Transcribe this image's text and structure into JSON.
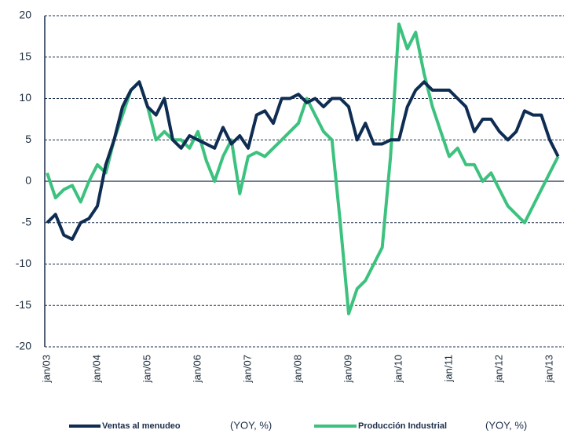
{
  "chart_data": {
    "type": "line",
    "categories": [
      "jan/03",
      null,
      null,
      null,
      null,
      null,
      "jan/04",
      null,
      null,
      null,
      null,
      null,
      "jan/05",
      null,
      null,
      null,
      null,
      null,
      "jan/06",
      null,
      null,
      null,
      null,
      null,
      "jan/07",
      null,
      null,
      null,
      null,
      null,
      "jan/08",
      null,
      null,
      null,
      null,
      null,
      "jan/09",
      null,
      null,
      null,
      null,
      null,
      "jan/10",
      null,
      null,
      null,
      null,
      null,
      "jan/11",
      null,
      null,
      null,
      null,
      null,
      "jan/12",
      null,
      null,
      null,
      null,
      null,
      "jan/13",
      null
    ],
    "series": [
      {
        "name": "Ventas al menudeo",
        "color": "#0f2c52",
        "values": [
          -5,
          -4,
          -6.5,
          -7,
          -5,
          -4.5,
          -3,
          2,
          5,
          9,
          11,
          12,
          9,
          8,
          10,
          5,
          4,
          5.5,
          5,
          4.5,
          4,
          6.5,
          4.5,
          5.5,
          4,
          8,
          8.5,
          7,
          10,
          10,
          10.5,
          9.5,
          10,
          9,
          10,
          10,
          9,
          5,
          7,
          4.5,
          4.5,
          5,
          5,
          9,
          11,
          12,
          11,
          11,
          11,
          10,
          9,
          6,
          7.5,
          7.5,
          6,
          5,
          6,
          8.5,
          8,
          8,
          5,
          3
        ]
      },
      {
        "name": "Producción Industrial",
        "color": "#3cc27e",
        "values": [
          1,
          -2,
          -1,
          -0.5,
          -2.5,
          0,
          2,
          1,
          5,
          8,
          11,
          12,
          9,
          5,
          6,
          5,
          5,
          4,
          6,
          2.5,
          0,
          3,
          5,
          -1.5,
          3,
          3.5,
          3,
          4,
          5,
          6,
          7,
          10,
          8,
          6,
          5,
          -5,
          -16,
          -13,
          -12,
          -10,
          -8,
          3,
          19,
          16,
          18,
          13,
          9,
          6,
          3,
          4,
          2,
          2,
          0,
          1,
          -1,
          -3,
          -4,
          -5,
          -3,
          -1,
          1,
          3
        ]
      }
    ],
    "legend_units": [
      "(YOY,  %)",
      "(YOY,  %)"
    ],
    "ylim": [
      -20,
      20
    ],
    "yticks": [
      -20,
      -15,
      -10,
      -5,
      0,
      5,
      10,
      15,
      20
    ],
    "grid": true
  }
}
